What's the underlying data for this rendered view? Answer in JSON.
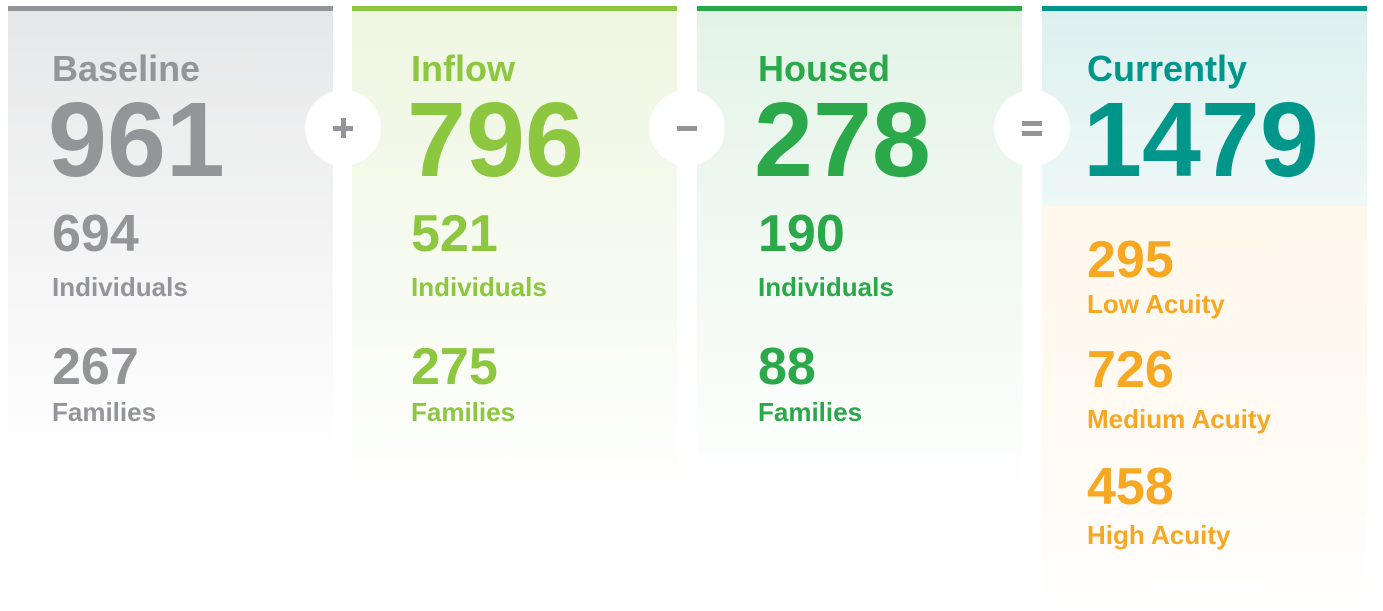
{
  "columns": [
    {
      "title": "Baseline",
      "total": 961,
      "items": [
        {
          "value": 694,
          "label": "Individuals"
        },
        {
          "value": 267,
          "label": "Families"
        }
      ]
    },
    {
      "title": "Inflow",
      "total": 796,
      "items": [
        {
          "value": 521,
          "label": "Individuals"
        },
        {
          "value": 275,
          "label": "Families"
        }
      ]
    },
    {
      "title": "Housed",
      "total": 278,
      "items": [
        {
          "value": 190,
          "label": "Individuals"
        },
        {
          "value": 88,
          "label": "Families"
        }
      ]
    },
    {
      "title": "Currently",
      "total": 1479,
      "items": [
        {
          "value": 295,
          "label": "Low Acuity"
        },
        {
          "value": 726,
          "label": "Medium Acuity"
        },
        {
          "value": 458,
          "label": "High Acuity"
        }
      ]
    }
  ]
}
